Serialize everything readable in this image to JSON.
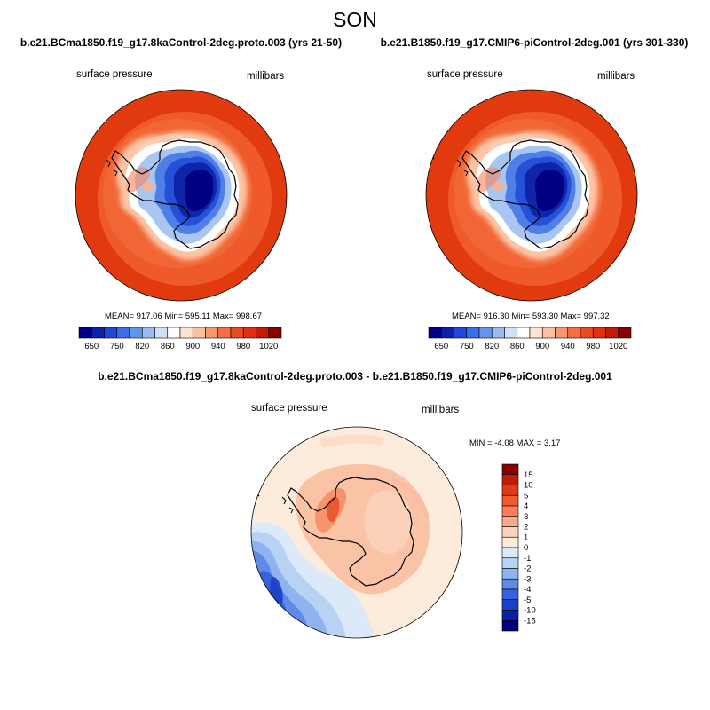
{
  "season": "SON",
  "panels": {
    "left": {
      "case": "b.e21.BCma1850.f19_g17.8kaControl-2deg.proto.003 (yrs 21-50)",
      "variable": "surface pressure",
      "units": "millibars",
      "stats": "MEAN= 917.06  Min= 595.11  Max= 998.67"
    },
    "right": {
      "case": "b.e21.B1850.f19_g17.CMIP6-piControl-2deg.001 (yrs 301-330)",
      "variable": "surface pressure",
      "units": "millibars",
      "stats": "MEAN= 916.30  Min= 593.30  Max= 997.32"
    },
    "diff": {
      "case": "b.e21.BCma1850.f19_g17.8kaControl-2deg.proto.003 - b.e21.B1850.f19_g17.CMIP6-piControl-2deg.001",
      "variable": "surface pressure",
      "units": "millibars",
      "stats": "MIN =  -4.08 MAX =   3.17"
    }
  },
  "chart_data": [
    {
      "type": "heatmap",
      "projection": "south polar stereographic",
      "title": "b.e21.BCma1850.f19_g17.8kaControl-2deg.proto.003 (yrs 21-50)",
      "variable": "surface pressure",
      "units": "millibars",
      "mean": 917.06,
      "min": 595.11,
      "max": 998.67,
      "colorbar_levels": [
        650,
        700,
        750,
        800,
        820,
        840,
        860,
        880,
        900,
        920,
        940,
        960,
        980,
        1000,
        1020
      ],
      "colorbar_ticklabels": [
        "650",
        "750",
        "820",
        "860",
        "900",
        "940",
        "980",
        "1020"
      ],
      "colorbar_colors": [
        "#000080",
        "#0b21a8",
        "#1f47d9",
        "#3d6ee8",
        "#6495ed",
        "#9bbcf2",
        "#cfe0f8",
        "#ffffff",
        "#fde3d0",
        "#fcc0a0",
        "#f99670",
        "#f46d45",
        "#ec4a20",
        "#e03010",
        "#c01b05",
        "#8a0000"
      ]
    },
    {
      "type": "heatmap",
      "projection": "south polar stereographic",
      "title": "b.e21.B1850.f19_g17.CMIP6-piControl-2deg.001 (yrs 301-330)",
      "variable": "surface pressure",
      "units": "millibars",
      "mean": 916.3,
      "min": 593.3,
      "max": 997.32,
      "colorbar_levels": [
        650,
        700,
        750,
        800,
        820,
        840,
        860,
        880,
        900,
        920,
        940,
        960,
        980,
        1000,
        1020
      ],
      "colorbar_ticklabels": [
        "650",
        "750",
        "820",
        "860",
        "900",
        "940",
        "980",
        "1020"
      ],
      "colorbar_colors": [
        "#000080",
        "#0b21a8",
        "#1f47d9",
        "#3d6ee8",
        "#6495ed",
        "#9bbcf2",
        "#cfe0f8",
        "#ffffff",
        "#fde3d0",
        "#fcc0a0",
        "#f99670",
        "#f46d45",
        "#ec4a20",
        "#e03010",
        "#c01b05",
        "#8a0000"
      ]
    },
    {
      "type": "heatmap",
      "projection": "south polar stereographic",
      "title": "b.e21.BCma1850.f19_g17.8kaControl-2deg.proto.003 - b.e21.B1850.f19_g17.CMIP6-piControl-2deg.001",
      "variable": "surface pressure difference",
      "units": "millibars",
      "min": -4.08,
      "max": 3.17,
      "colorbar_levels": [
        15,
        10,
        5,
        4,
        3,
        2,
        1,
        0,
        -1,
        -2,
        -3,
        -4,
        -5,
        -10,
        -15
      ],
      "colorbar_colors": [
        "#8a0000",
        "#c01b05",
        "#e23a15",
        "#f25a30",
        "#f7805a",
        "#fbaa88",
        "#fdd2bc",
        "#fdebdc",
        "#dce9f8",
        "#b8d2f3",
        "#8fb3ee",
        "#5f8ae6",
        "#3563dd",
        "#1b3fc9",
        "#0b22a8",
        "#000080"
      ]
    }
  ]
}
